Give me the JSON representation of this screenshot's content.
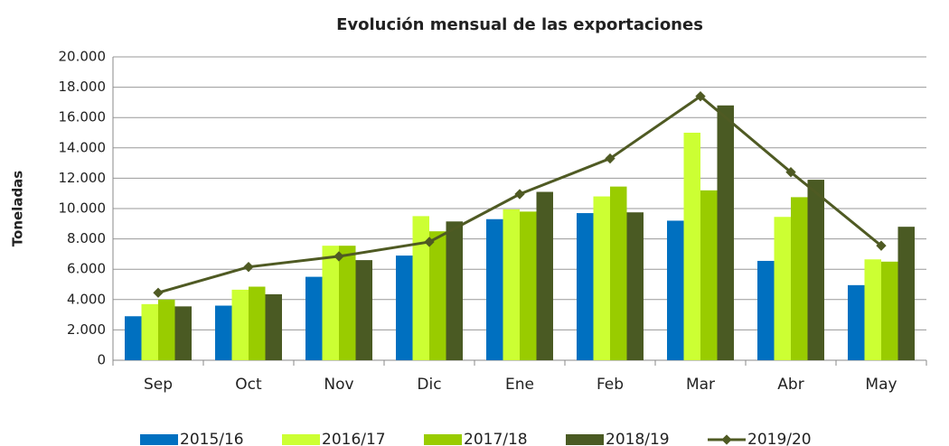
{
  "chart_data": {
    "type": "bar",
    "title": "Evolución mensual de las exportaciones",
    "y_label": "Toneladas",
    "categories": [
      "Sep",
      "Oct",
      "Nov",
      "Dic",
      "Ene",
      "Feb",
      "Mar",
      "Abr",
      "May"
    ],
    "series": [
      {
        "name": "2015/16",
        "type": "bar",
        "color": "#0070c0",
        "values": [
          2900,
          3600,
          5500,
          6900,
          9300,
          9700,
          9200,
          6550,
          4950
        ]
      },
      {
        "name": "2016/17",
        "type": "bar",
        "color": "#ccff33",
        "values": [
          3700,
          4650,
          7550,
          9500,
          9950,
          10800,
          15000,
          9450,
          6650
        ]
      },
      {
        "name": "2017/18",
        "type": "bar",
        "color": "#99cc00",
        "values": [
          4000,
          4850,
          7550,
          8500,
          9800,
          11450,
          11200,
          10750,
          6500
        ]
      },
      {
        "name": "2018/19",
        "type": "bar",
        "color": "#4a5a23",
        "values": [
          3550,
          4350,
          6600,
          9150,
          11100,
          9750,
          16800,
          11900,
          8800
        ]
      },
      {
        "name": "2019/20",
        "type": "line",
        "color": "#4f5a23",
        "values": [
          4450,
          6150,
          6850,
          7800,
          10950,
          13300,
          17400,
          12400,
          7550
        ]
      }
    ],
    "ylim": [
      0,
      20000
    ],
    "yticks": [
      0,
      {
        "value": 2000,
        "label": "2.000"
      },
      {
        "value": 4000,
        "label": "4.000"
      },
      {
        "value": 6000,
        "label": "6.000"
      },
      {
        "value": 8000,
        "label": "8.000"
      },
      {
        "value": 10000,
        "label": "10.000"
      },
      {
        "value": 12000,
        "label": "12.000"
      },
      {
        "value": 14000,
        "label": "14.000"
      },
      {
        "value": 16000,
        "label": "16.000"
      },
      {
        "value": 18000,
        "label": "18.000"
      },
      {
        "value": 20000,
        "label": "20.000"
      }
    ],
    "grid": true,
    "legend": "bottom"
  }
}
